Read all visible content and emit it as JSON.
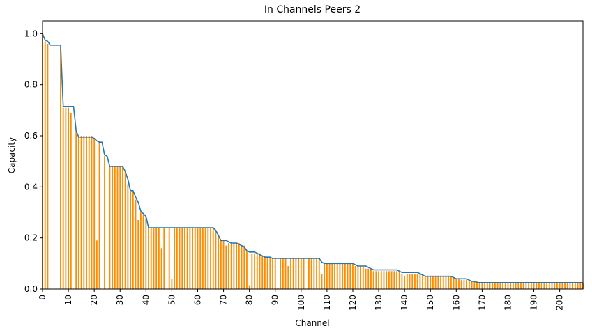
{
  "chart_data": {
    "type": "bar",
    "title": "In Channels Peers 2",
    "xlabel": "Channel",
    "ylabel": "Capacity",
    "xlim": [
      0,
      209
    ],
    "ylim": [
      0,
      1.05
    ],
    "x_ticks": [
      0,
      10,
      20,
      30,
      40,
      50,
      60,
      70,
      80,
      90,
      100,
      110,
      120,
      130,
      140,
      150,
      160,
      170,
      180,
      190,
      200
    ],
    "y_ticks": [
      0.0,
      0.2,
      0.4,
      0.6,
      0.8,
      1.0
    ],
    "y_tick_labels": [
      "0.0",
      "0.2",
      "0.4",
      "0.6",
      "0.8",
      "1.0"
    ],
    "grid": false,
    "bar_color": "#ff8c00",
    "line_color": "#1f77b4",
    "bars": [
      1.0,
      0.97,
      0.96,
      0.0,
      0.0,
      0.0,
      0.0,
      0.95,
      0.71,
      0.71,
      0.71,
      0.69,
      0.0,
      0.62,
      0.6,
      0.6,
      0.6,
      0.6,
      0.6,
      0.6,
      0.59,
      0.19,
      0.58,
      0.0,
      0.52,
      0.0,
      0.48,
      0.48,
      0.48,
      0.48,
      0.48,
      0.48,
      0.46,
      0.41,
      0.38,
      0.38,
      0.35,
      0.27,
      0.3,
      0.29,
      0.28,
      0.24,
      0.24,
      0.24,
      0.24,
      0.24,
      0.16,
      0.24,
      0.0,
      0.24,
      0.04,
      0.24,
      0.24,
      0.24,
      0.24,
      0.24,
      0.24,
      0.24,
      0.24,
      0.24,
      0.24,
      0.24,
      0.24,
      0.24,
      0.24,
      0.24,
      0.24,
      0.23,
      0.21,
      0.19,
      0.19,
      0.17,
      0.18,
      0.18,
      0.18,
      0.18,
      0.18,
      0.17,
      0.17,
      0.15,
      0.015,
      0.14,
      0.14,
      0.14,
      0.14,
      0.13,
      0.13,
      0.12,
      0.12,
      0.12,
      0.12,
      0.005,
      0.12,
      0.12,
      0.12,
      0.09,
      0.12,
      0.12,
      0.12,
      0.12,
      0.12,
      0.12,
      0.0,
      0.12,
      0.12,
      0.12,
      0.12,
      0.12,
      0.06,
      0.1,
      0.1,
      0.1,
      0.1,
      0.1,
      0.1,
      0.1,
      0.1,
      0.1,
      0.1,
      0.1,
      0.1,
      0.09,
      0.09,
      0.09,
      0.09,
      0.08,
      0.08,
      0.08,
      0.07,
      0.07,
      0.07,
      0.07,
      0.07,
      0.07,
      0.07,
      0.07,
      0.07,
      0.07,
      0.07,
      0.06,
      0.05,
      0.06,
      0.06,
      0.06,
      0.06,
      0.06,
      0.06,
      0.06,
      0.05,
      0.05,
      0.05,
      0.05,
      0.05,
      0.05,
      0.05,
      0.05,
      0.05,
      0.05,
      0.05,
      0.045,
      0.04,
      0.04,
      0.035,
      0.035,
      0.035,
      0.035,
      0.03,
      0.03,
      0.03,
      0.025,
      0.025,
      0.025,
      0.025,
      0.025,
      0.025,
      0.025,
      0.025,
      0.025,
      0.025,
      0.025,
      0.025,
      0.025,
      0.025,
      0.025,
      0.025,
      0.025,
      0.025,
      0.025,
      0.025,
      0.025,
      0.025,
      0.025,
      0.025,
      0.025,
      0.025,
      0.025,
      0.025,
      0.025,
      0.025,
      0.025,
      0.025,
      0.025,
      0.025,
      0.025,
      0.025,
      0.025,
      0.025,
      0.025,
      0.025,
      0.025
    ],
    "line": [
      1.0,
      0.975,
      0.97,
      0.955,
      0.955,
      0.955,
      0.955,
      0.955,
      0.715,
      0.715,
      0.715,
      0.715,
      0.715,
      0.62,
      0.595,
      0.595,
      0.595,
      0.595,
      0.595,
      0.595,
      0.59,
      0.58,
      0.575,
      0.575,
      0.525,
      0.52,
      0.48,
      0.48,
      0.48,
      0.48,
      0.48,
      0.48,
      0.46,
      0.43,
      0.385,
      0.385,
      0.36,
      0.34,
      0.305,
      0.295,
      0.285,
      0.24,
      0.24,
      0.24,
      0.24,
      0.24,
      0.24,
      0.24,
      0.24,
      0.24,
      0.24,
      0.24,
      0.24,
      0.24,
      0.24,
      0.24,
      0.24,
      0.24,
      0.24,
      0.24,
      0.24,
      0.24,
      0.24,
      0.24,
      0.24,
      0.24,
      0.24,
      0.23,
      0.21,
      0.19,
      0.19,
      0.19,
      0.185,
      0.18,
      0.18,
      0.18,
      0.175,
      0.17,
      0.165,
      0.15,
      0.145,
      0.145,
      0.145,
      0.14,
      0.135,
      0.13,
      0.125,
      0.125,
      0.125,
      0.12,
      0.12,
      0.12,
      0.12,
      0.12,
      0.12,
      0.12,
      0.12,
      0.12,
      0.12,
      0.12,
      0.12,
      0.12,
      0.12,
      0.12,
      0.12,
      0.12,
      0.12,
      0.12,
      0.105,
      0.1,
      0.1,
      0.1,
      0.1,
      0.1,
      0.1,
      0.1,
      0.1,
      0.1,
      0.1,
      0.1,
      0.1,
      0.095,
      0.09,
      0.09,
      0.09,
      0.09,
      0.085,
      0.08,
      0.075,
      0.075,
      0.075,
      0.075,
      0.075,
      0.075,
      0.075,
      0.075,
      0.075,
      0.075,
      0.07,
      0.065,
      0.065,
      0.065,
      0.065,
      0.065,
      0.065,
      0.065,
      0.06,
      0.055,
      0.05,
      0.05,
      0.05,
      0.05,
      0.05,
      0.05,
      0.05,
      0.05,
      0.05,
      0.05,
      0.05,
      0.045,
      0.04,
      0.04,
      0.04,
      0.04,
      0.04,
      0.035,
      0.03,
      0.03,
      0.025,
      0.025,
      0.025,
      0.025,
      0.025,
      0.025,
      0.025,
      0.025,
      0.025,
      0.025,
      0.025,
      0.025,
      0.025,
      0.025,
      0.025,
      0.025,
      0.025,
      0.025,
      0.025,
      0.025,
      0.025,
      0.025,
      0.025,
      0.025,
      0.025,
      0.025,
      0.025,
      0.025,
      0.025,
      0.025,
      0.025,
      0.025,
      0.025,
      0.025,
      0.025,
      0.025,
      0.025,
      0.025,
      0.025,
      0.025,
      0.025,
      0.025
    ]
  }
}
